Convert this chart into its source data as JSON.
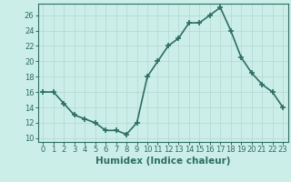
{
  "x": [
    0,
    1,
    2,
    3,
    4,
    5,
    6,
    7,
    8,
    9,
    10,
    11,
    12,
    13,
    14,
    15,
    16,
    17,
    18,
    19,
    20,
    21,
    22,
    23
  ],
  "y": [
    16,
    16,
    14.5,
    13,
    12.5,
    12,
    11,
    11,
    10.5,
    12,
    18,
    20,
    22,
    23,
    25,
    25,
    26,
    27,
    24,
    20.5,
    18.5,
    17,
    16,
    14
  ],
  "line_color": "#2d6e62",
  "marker": "+",
  "marker_size": 5,
  "bg_color": "#cceee8",
  "grid_color": "#b0d8d0",
  "xlabel": "Humidex (Indice chaleur)",
  "xlabel_fontsize": 7.5,
  "ylabel_ticks": [
    10,
    12,
    14,
    16,
    18,
    20,
    22,
    24,
    26
  ],
  "xtick_labels": [
    "0",
    "1",
    "2",
    "3",
    "4",
    "5",
    "6",
    "7",
    "8",
    "9",
    "10",
    "11",
    "12",
    "13",
    "14",
    "15",
    "16",
    "17",
    "18",
    "19",
    "20",
    "21",
    "22",
    "23"
  ],
  "ylim": [
    9.5,
    27.5
  ],
  "xlim": [
    -0.5,
    23.5
  ],
  "tick_fontsize": 6.0,
  "linewidth": 1.2
}
